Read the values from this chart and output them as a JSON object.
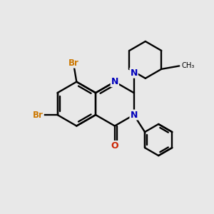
{
  "bg_color": "#e8e8e8",
  "bond_color": "#000000",
  "n_color": "#0000bb",
  "o_color": "#cc2200",
  "br_color": "#cc7700",
  "lw": 1.7,
  "xlim": [
    0,
    10
  ],
  "ylim": [
    0,
    10
  ]
}
